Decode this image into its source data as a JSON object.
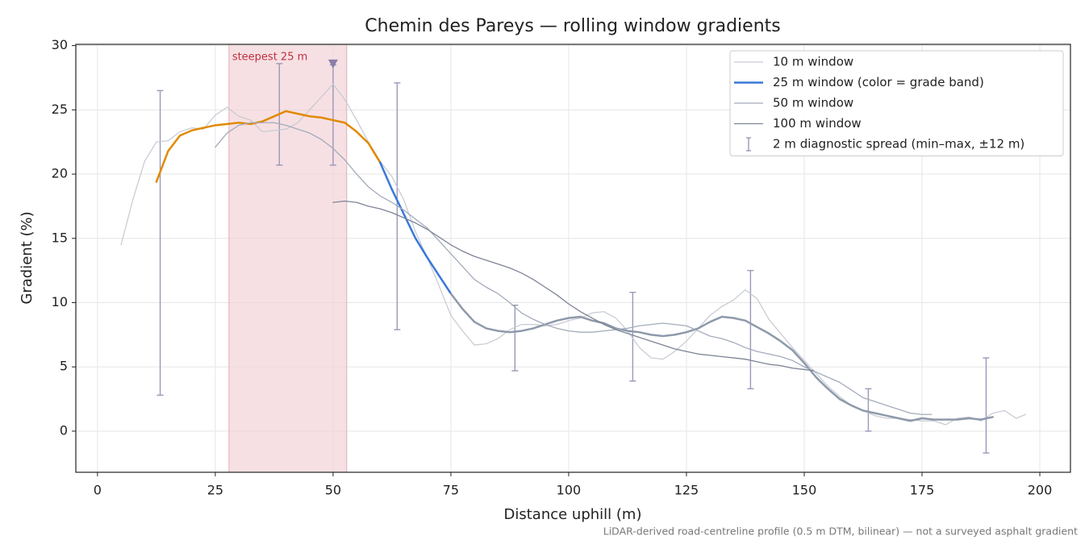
{
  "chart_data": {
    "type": "line",
    "title": "Chemin des Pareys — rolling window gradients",
    "xlabel": "Distance uphill (m)",
    "ylabel": "Gradient (%)",
    "footnote": "LiDAR-derived road-centreline profile (0.5 m DTM, bilinear) — not a surveyed asphalt gradient",
    "xlim": [
      -4.6,
      206.5
    ],
    "ylim": [
      -3.2,
      30.1
    ],
    "xticks": [
      0,
      25,
      50,
      75,
      100,
      125,
      150,
      175,
      200
    ],
    "yticks": [
      0,
      5,
      10,
      15,
      20,
      25,
      30
    ],
    "grid": true,
    "legend": "upper right",
    "highlight": {
      "label": "steepest 25 m",
      "xrange": [
        27.9,
        52.9
      ],
      "marker": [
        50,
        28.6
      ],
      "color": "#f1d0d4",
      "marker_color": "#8a7fa8"
    },
    "series": [
      {
        "name": "10 m window",
        "color": "#c5c9d2",
        "width": 1.2,
        "x": [
          5,
          7.5,
          10,
          12.5,
          15,
          17.5,
          20,
          22.5,
          25,
          27.5,
          30,
          32.5,
          35,
          37.5,
          40,
          42.5,
          45,
          47.5,
          50,
          52.5,
          55,
          57.5,
          60,
          62.5,
          65,
          67.5,
          70,
          72.5,
          75,
          77.5,
          80,
          82.5,
          85,
          87.5,
          90,
          92.5,
          95,
          97.5,
          100,
          102.5,
          105,
          107.5,
          110,
          112.5,
          115,
          117.5,
          120,
          122.5,
          125,
          127.5,
          130,
          132.5,
          135,
          137.5,
          140,
          142.5,
          145,
          147.5,
          150,
          152.5,
          155,
          157.5,
          160,
          162.5,
          165,
          167.5,
          170,
          172.5,
          175,
          177.5,
          180,
          182.5,
          185,
          187.5,
          190,
          192.5,
          195,
          197
        ],
        "values": [
          14.5,
          18,
          21,
          22.5,
          22.6,
          23.3,
          23.6,
          23.5,
          24.6,
          25.2,
          24.5,
          24.2,
          23.3,
          23.4,
          23.5,
          24,
          25,
          26,
          27,
          25.8,
          24.2,
          22.5,
          21,
          19.8,
          18,
          15.5,
          13.5,
          11.3,
          9,
          7.8,
          6.7,
          6.8,
          7.2,
          7.9,
          8.3,
          8.3,
          8.2,
          8.3,
          8.6,
          8.8,
          9.2,
          9.3,
          8.8,
          7.8,
          6.5,
          5.7,
          5.6,
          6.2,
          7,
          8,
          9,
          9.7,
          10.2,
          11,
          10.3,
          8.7,
          7.6,
          6.5,
          5.5,
          4.5,
          3.5,
          2.7,
          2,
          1.6,
          1.2,
          1.0,
          1.0,
          0.9,
          0.8,
          0.8,
          0.5,
          1.0,
          1.1,
          0.8,
          1.4,
          1.6,
          1.0,
          1.3
        ]
      },
      {
        "name": "25 m window (color = grade band)",
        "color": "#3a78d8",
        "width": 2.5,
        "bands": [
          {
            "min": 19,
            "color": "#e08a00"
          },
          {
            "min": 10,
            "color": "#3a78d8"
          },
          {
            "color": "#8e99aa"
          }
        ],
        "x": [
          12.5,
          15,
          17.5,
          20,
          22.5,
          25,
          27.5,
          30,
          32.5,
          35,
          37.5,
          40,
          42.5,
          45,
          47.5,
          50,
          52.5,
          55,
          57.5,
          60,
          62.5,
          65,
          67.5,
          70,
          72.5,
          75,
          77.5,
          80,
          82.5,
          85,
          87.5,
          90,
          92.5,
          95,
          97.5,
          100,
          102.5,
          105,
          107.5,
          110,
          112.5,
          115,
          117.5,
          120,
          122.5,
          125,
          127.5,
          130,
          132.5,
          135,
          137.5,
          140,
          142.5,
          145,
          147.5,
          150,
          152.5,
          155,
          157.5,
          160,
          162.5,
          165,
          167.5,
          170,
          172.5,
          175,
          177.5,
          180,
          182.5,
          185,
          187.5,
          190
        ],
        "values": [
          19.4,
          21.8,
          23,
          23.4,
          23.6,
          23.8,
          23.9,
          24,
          23.9,
          24.1,
          24.5,
          24.9,
          24.7,
          24.5,
          24.4,
          24.2,
          24,
          23.3,
          22.4,
          20.9,
          18.8,
          16.9,
          15,
          13.5,
          12.1,
          10.7,
          9.5,
          8.5,
          8.0,
          7.8,
          7.7,
          7.8,
          8.0,
          8.3,
          8.6,
          8.8,
          8.9,
          8.6,
          8.4,
          8.0,
          7.8,
          7.7,
          7.5,
          7.4,
          7.5,
          7.7,
          8.0,
          8.5,
          8.9,
          8.8,
          8.6,
          8.1,
          7.6,
          7.0,
          6.3,
          5.3,
          4.2,
          3.3,
          2.5,
          2.0,
          1.6,
          1.4,
          1.2,
          1.0,
          0.8,
          1.0,
          0.9,
          0.9,
          0.9,
          1.0,
          0.9,
          1.1
        ]
      },
      {
        "name": "50 m window",
        "color": "#a3abbb",
        "width": 1.3,
        "x": [
          25,
          27.5,
          30,
          32.5,
          35,
          37.5,
          40,
          42.5,
          45,
          47.5,
          50,
          52.5,
          55,
          57.5,
          60,
          62.5,
          65,
          67.5,
          70,
          72.5,
          75,
          77.5,
          80,
          82.5,
          85,
          87.5,
          90,
          92.5,
          95,
          97.5,
          100,
          102.5,
          105,
          107.5,
          110,
          112.5,
          115,
          117.5,
          120,
          122.5,
          125,
          127.5,
          130,
          132.5,
          135,
          137.5,
          140,
          142.5,
          145,
          147.5,
          150,
          152.5,
          155,
          157.5,
          160,
          162.5,
          165,
          167.5,
          170,
          172.5,
          175,
          177
        ],
        "values": [
          22.1,
          23.2,
          23.8,
          24,
          24,
          24,
          23.8,
          23.5,
          23.2,
          22.7,
          22,
          21.1,
          20,
          19,
          18.3,
          17.8,
          17.2,
          16.5,
          15.8,
          14.8,
          13.8,
          12.8,
          11.8,
          11.2,
          10.7,
          10,
          9.2,
          8.7,
          8.3,
          8.0,
          7.8,
          7.7,
          7.7,
          7.8,
          7.9,
          8.0,
          8.2,
          8.3,
          8.4,
          8.3,
          8.2,
          7.8,
          7.4,
          7.2,
          6.9,
          6.5,
          6.2,
          6.0,
          5.8,
          5.5,
          5.0,
          4.6,
          4.2,
          3.8,
          3.2,
          2.6,
          2.3,
          2.0,
          1.7,
          1.4,
          1.3,
          1.3
        ]
      },
      {
        "name": "100 m window",
        "color": "#7d8495",
        "width": 1.3,
        "x": [
          50,
          52.5,
          55,
          57.5,
          60,
          62.5,
          65,
          67.5,
          70,
          72.5,
          75,
          77.5,
          80,
          82.5,
          85,
          87.5,
          90,
          92.5,
          95,
          97.5,
          100,
          102.5,
          105,
          107.5,
          110,
          112.5,
          115,
          117.5,
          120,
          122.5,
          125,
          127.5,
          130,
          132.5,
          135,
          137.5,
          140,
          142.5,
          145,
          147.5,
          150,
          152
        ],
        "values": [
          17.8,
          17.9,
          17.8,
          17.5,
          17.3,
          17.0,
          16.6,
          16.2,
          15.7,
          15.1,
          14.5,
          14.0,
          13.6,
          13.3,
          13.0,
          12.7,
          12.3,
          11.8,
          11.2,
          10.6,
          9.9,
          9.3,
          8.8,
          8.3,
          7.9,
          7.6,
          7.3,
          7.0,
          6.7,
          6.4,
          6.2,
          6.0,
          5.9,
          5.8,
          5.7,
          5.6,
          5.4,
          5.2,
          5.1,
          4.9,
          4.8,
          4.7
        ]
      }
    ],
    "diagnostic": {
      "name": "2 m diagnostic spread (min–max, ±12 m)",
      "color": "#9a98b8",
      "x": [
        13.3,
        38.6,
        50,
        63.6,
        88.6,
        113.6,
        138.6,
        163.6,
        188.6
      ],
      "low": [
        2.8,
        20.7,
        20.7,
        7.9,
        4.7,
        3.9,
        3.3,
        0.0,
        -1.7
      ],
      "high": [
        26.5,
        28.6,
        28.5,
        27.1,
        9.8,
        10.8,
        12.5,
        3.3,
        5.7
      ]
    }
  }
}
